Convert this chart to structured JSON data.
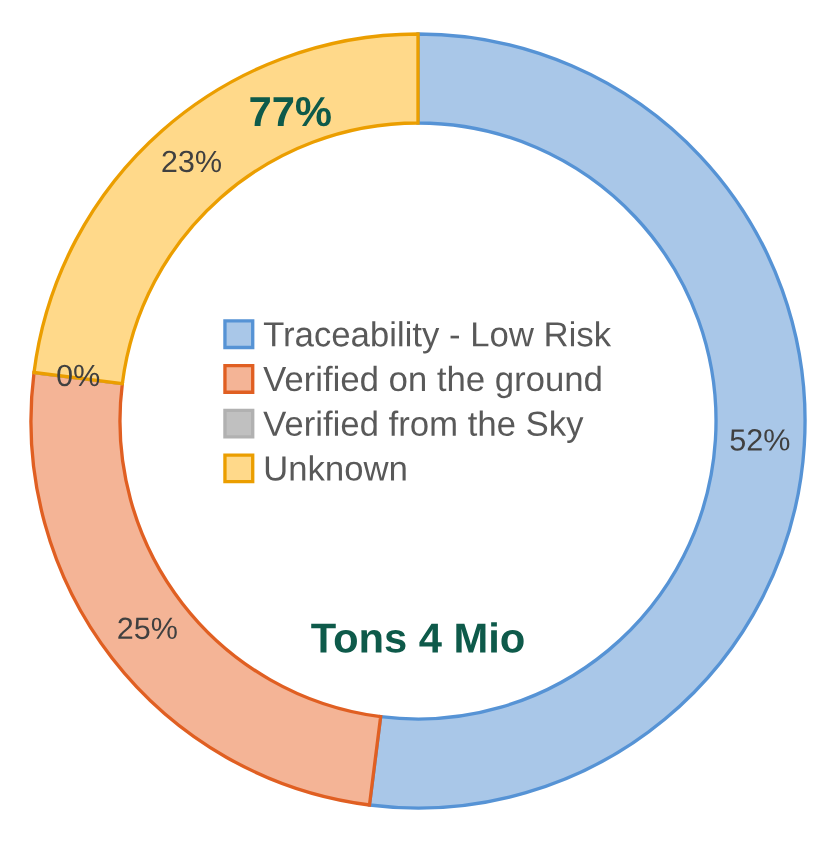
{
  "chart_data": {
    "type": "donut",
    "categories": [
      "Traceability - Low Risk",
      "Verified on the ground",
      "Verified from the Sky",
      "Unknown"
    ],
    "values": [
      52,
      25,
      0,
      23
    ],
    "value_labels": [
      "52%",
      "25%",
      "0%",
      "23%"
    ],
    "colors": [
      "#a9c7e8",
      "#f4b496",
      "#c0c0c0",
      "#ffd98a"
    ],
    "legend": "center",
    "annotations": [
      "77%",
      "Tons 4 Mio"
    ]
  }
}
